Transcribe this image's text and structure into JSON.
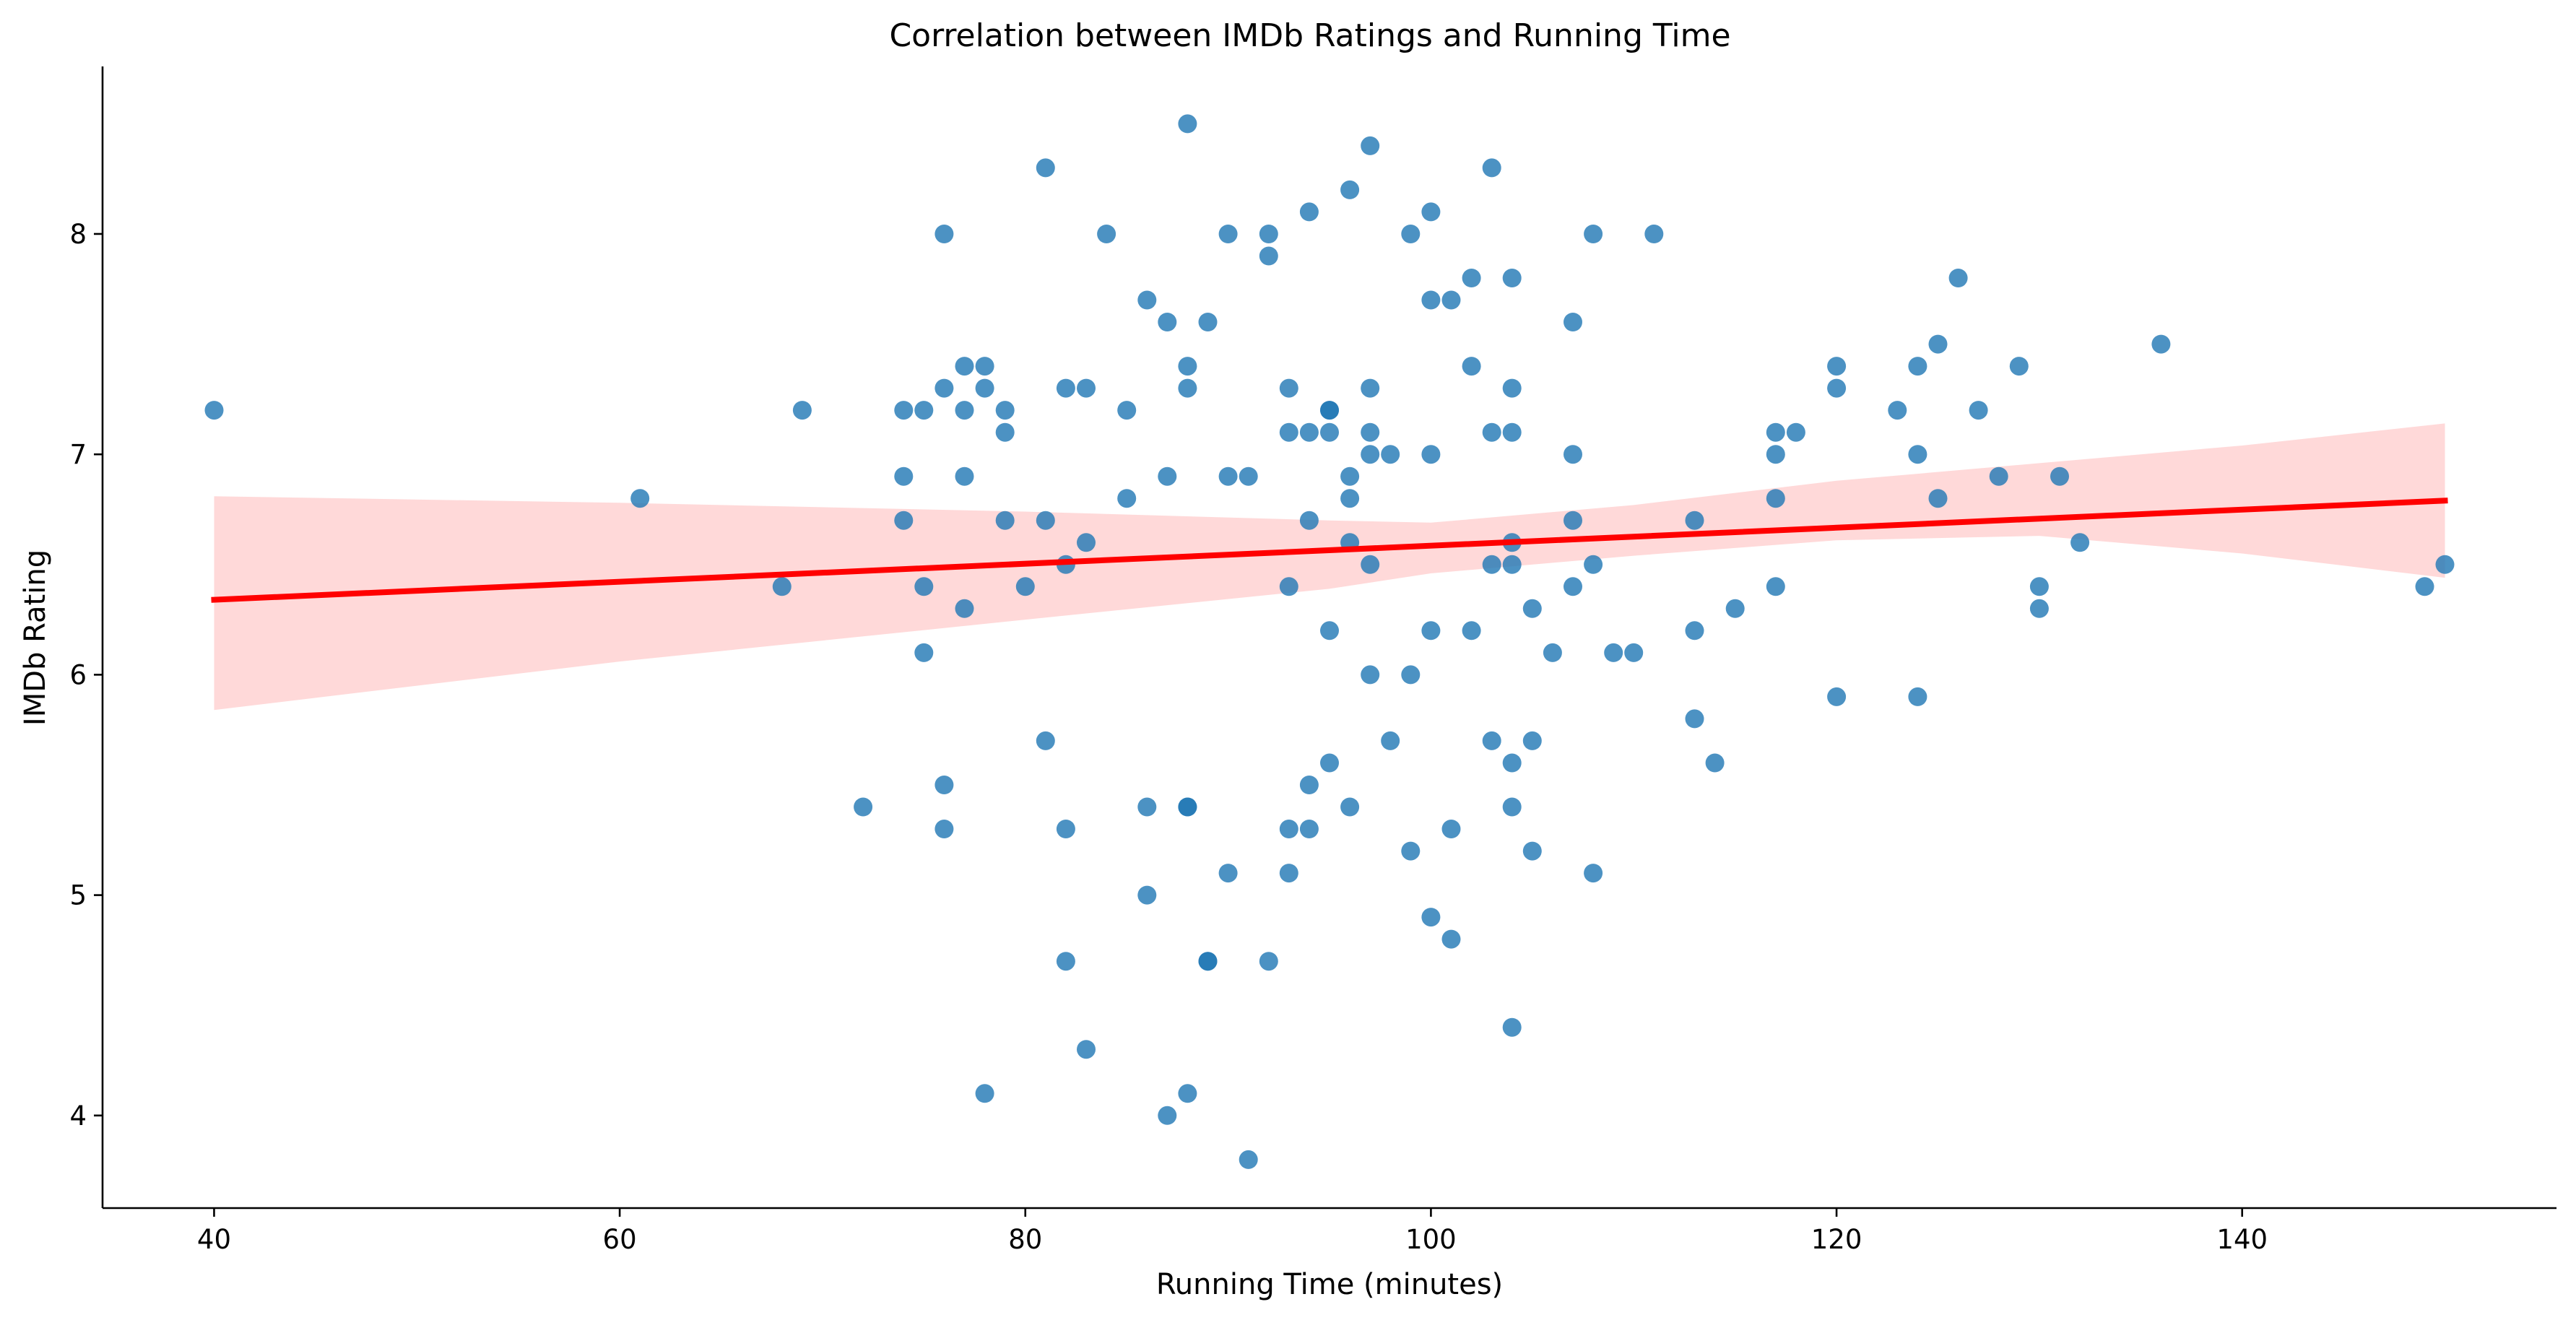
{
  "chart_data": {
    "type": "scatter",
    "title": "Correlation between IMDb Ratings and Running Time",
    "xlabel": "Running Time (minutes)",
    "ylabel": "IMDb Rating",
    "xlim": [
      34.5,
      155.5
    ],
    "ylim": [
      3.58,
      8.76
    ],
    "xticks": [
      40,
      60,
      80,
      100,
      120,
      140
    ],
    "yticks": [
      4,
      5,
      6,
      7,
      8
    ],
    "grid": false,
    "colors": {
      "points": "#1f77b4",
      "regression": "#ff0000",
      "confidence_band": "#ff0000"
    },
    "series": [
      {
        "points": [
          [
            40,
            7.2
          ],
          [
            61,
            6.8
          ],
          [
            68,
            6.4
          ],
          [
            69,
            7.2
          ],
          [
            72,
            5.4
          ],
          [
            74,
            7.2
          ],
          [
            74,
            6.9
          ],
          [
            74,
            6.7
          ],
          [
            75,
            7.2
          ],
          [
            75,
            6.4
          ],
          [
            75,
            6.1
          ],
          [
            76,
            8.0
          ],
          [
            76,
            7.3
          ],
          [
            76,
            5.5
          ],
          [
            76,
            5.3
          ],
          [
            77,
            7.4
          ],
          [
            77,
            7.2
          ],
          [
            77,
            6.9
          ],
          [
            77,
            6.3
          ],
          [
            78,
            7.4
          ],
          [
            78,
            7.3
          ],
          [
            78,
            4.1
          ],
          [
            79,
            7.2
          ],
          [
            79,
            7.1
          ],
          [
            79,
            6.7
          ],
          [
            80,
            6.4
          ],
          [
            81,
            8.3
          ],
          [
            81,
            6.7
          ],
          [
            81,
            5.7
          ],
          [
            82,
            7.3
          ],
          [
            82,
            6.5
          ],
          [
            82,
            5.3
          ],
          [
            82,
            4.7
          ],
          [
            83,
            7.3
          ],
          [
            83,
            6.6
          ],
          [
            83,
            4.3
          ],
          [
            84,
            8.0
          ],
          [
            85,
            7.2
          ],
          [
            85,
            6.8
          ],
          [
            86,
            7.7
          ],
          [
            86,
            5.4
          ],
          [
            86,
            5.0
          ],
          [
            87,
            7.6
          ],
          [
            87,
            6.9
          ],
          [
            87,
            4.0
          ],
          [
            88,
            8.5
          ],
          [
            88,
            7.4
          ],
          [
            88,
            7.3
          ],
          [
            88,
            5.4
          ],
          [
            88,
            5.4
          ],
          [
            88,
            4.1
          ],
          [
            89,
            7.6
          ],
          [
            89,
            4.7
          ],
          [
            89,
            4.7
          ],
          [
            90,
            8.0
          ],
          [
            90,
            6.9
          ],
          [
            90,
            5.1
          ],
          [
            91,
            6.9
          ],
          [
            91,
            3.8
          ],
          [
            92,
            8.0
          ],
          [
            92,
            7.9
          ],
          [
            92,
            4.7
          ],
          [
            93,
            7.3
          ],
          [
            93,
            7.1
          ],
          [
            93,
            6.4
          ],
          [
            93,
            5.3
          ],
          [
            93,
            5.1
          ],
          [
            94,
            8.1
          ],
          [
            94,
            7.1
          ],
          [
            94,
            6.7
          ],
          [
            94,
            5.5
          ],
          [
            94,
            5.3
          ],
          [
            95,
            7.2
          ],
          [
            95,
            7.2
          ],
          [
            95,
            7.1
          ],
          [
            95,
            6.2
          ],
          [
            95,
            5.6
          ],
          [
            96,
            8.2
          ],
          [
            96,
            6.9
          ],
          [
            96,
            6.8
          ],
          [
            96,
            6.6
          ],
          [
            96,
            5.4
          ],
          [
            97,
            8.4
          ],
          [
            97,
            7.3
          ],
          [
            97,
            7.1
          ],
          [
            97,
            7.0
          ],
          [
            97,
            6.5
          ],
          [
            97,
            6.0
          ],
          [
            98,
            7.0
          ],
          [
            98,
            5.7
          ],
          [
            99,
            8.0
          ],
          [
            99,
            6.0
          ],
          [
            99,
            5.2
          ],
          [
            100,
            8.1
          ],
          [
            100,
            7.7
          ],
          [
            100,
            7.0
          ],
          [
            100,
            6.2
          ],
          [
            100,
            4.9
          ],
          [
            101,
            7.7
          ],
          [
            101,
            5.3
          ],
          [
            101,
            4.8
          ],
          [
            102,
            7.8
          ],
          [
            102,
            7.4
          ],
          [
            102,
            6.2
          ],
          [
            103,
            8.3
          ],
          [
            103,
            7.1
          ],
          [
            103,
            6.5
          ],
          [
            103,
            5.7
          ],
          [
            104,
            7.8
          ],
          [
            104,
            7.3
          ],
          [
            104,
            7.1
          ],
          [
            104,
            6.6
          ],
          [
            104,
            6.5
          ],
          [
            104,
            5.6
          ],
          [
            104,
            5.4
          ],
          [
            104,
            4.4
          ],
          [
            105,
            6.3
          ],
          [
            105,
            5.7
          ],
          [
            105,
            5.2
          ],
          [
            106,
            6.1
          ],
          [
            107,
            7.6
          ],
          [
            107,
            7.0
          ],
          [
            107,
            6.7
          ],
          [
            107,
            6.4
          ],
          [
            108,
            8.0
          ],
          [
            108,
            6.5
          ],
          [
            108,
            5.1
          ],
          [
            109,
            6.1
          ],
          [
            110,
            6.1
          ],
          [
            111,
            8.0
          ],
          [
            113,
            6.7
          ],
          [
            113,
            6.2
          ],
          [
            113,
            5.8
          ],
          [
            114,
            5.6
          ],
          [
            115,
            6.3
          ],
          [
            117,
            7.1
          ],
          [
            117,
            7.0
          ],
          [
            117,
            6.8
          ],
          [
            117,
            6.4
          ],
          [
            118,
            7.1
          ],
          [
            120,
            7.4
          ],
          [
            120,
            7.3
          ],
          [
            120,
            5.9
          ],
          [
            123,
            7.2
          ],
          [
            124,
            7.4
          ],
          [
            124,
            7.0
          ],
          [
            124,
            5.9
          ],
          [
            125,
            7.5
          ],
          [
            125,
            6.8
          ],
          [
            126,
            7.8
          ],
          [
            127,
            7.2
          ],
          [
            128,
            6.9
          ],
          [
            129,
            7.4
          ],
          [
            130,
            6.4
          ],
          [
            130,
            6.3
          ],
          [
            131,
            6.9
          ],
          [
            132,
            6.6
          ],
          [
            136,
            7.5
          ],
          [
            149,
            6.4
          ],
          [
            150,
            6.5
          ]
        ]
      }
    ],
    "regression": {
      "x": [
        40,
        150
      ],
      "y": [
        6.34,
        6.79
      ],
      "band": {
        "x": [
          40,
          60,
          80,
          95,
          100,
          110,
          120,
          130,
          140,
          150
        ],
        "upper": [
          6.81,
          6.78,
          6.74,
          6.7,
          6.69,
          6.77,
          6.88,
          6.96,
          7.04,
          7.14
        ],
        "lower": [
          5.84,
          6.06,
          6.25,
          6.39,
          6.46,
          6.54,
          6.61,
          6.63,
          6.55,
          6.44
        ]
      }
    }
  }
}
